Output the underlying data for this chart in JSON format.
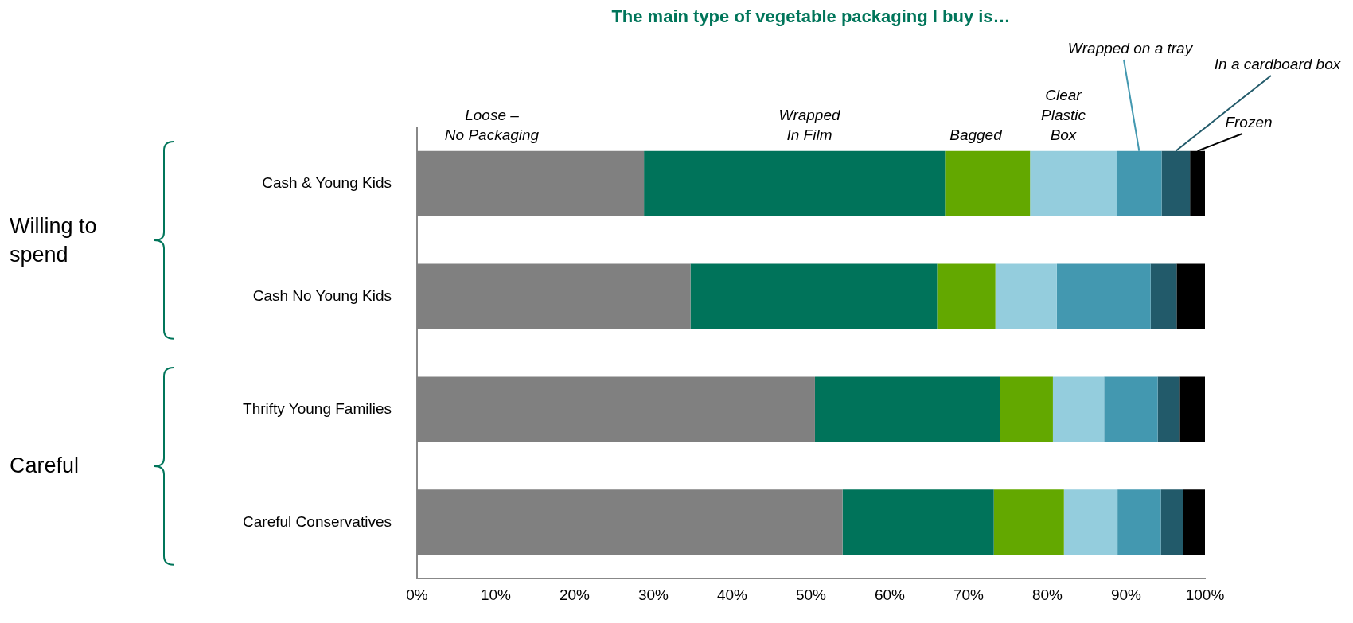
{
  "chart_data": {
    "type": "bar",
    "orientation": "horizontal",
    "stacked": true,
    "title": "The main type of vegetable packaging I buy is…",
    "categories": [
      "Cash & Young Kids",
      "Cash No Young Kids",
      "Thrifty Young Families",
      "Careful Conservatives"
    ],
    "series": [
      {
        "name": "Loose –\nNo Packaging",
        "color": "#808080",
        "values": [
          28.8,
          34.7,
          50.5,
          54.0
        ]
      },
      {
        "name": "Wrapped\nIn Film",
        "color": "#00735a",
        "values": [
          38.2,
          31.3,
          23.5,
          19.2
        ]
      },
      {
        "name": "Bagged",
        "color": "#63a800",
        "values": [
          10.8,
          7.4,
          6.7,
          8.9
        ]
      },
      {
        "name": "Clear\nPlastic\nBox",
        "color": "#94cddd",
        "values": [
          11.0,
          7.8,
          6.5,
          6.8
        ]
      },
      {
        "name": "Wrapped on a tray",
        "color": "#4398b0",
        "values": [
          5.7,
          11.9,
          6.8,
          5.5
        ]
      },
      {
        "name": "In a cardboard box",
        "color": "#225a6a",
        "values": [
          3.6,
          3.3,
          2.8,
          2.8
        ]
      },
      {
        "name": "Frozen",
        "color": "#000000",
        "values": [
          1.9,
          3.6,
          3.2,
          2.8
        ]
      }
    ],
    "xlim": [
      0,
      100
    ],
    "xticks": [
      {
        "value": 0,
        "label": "0%"
      },
      {
        "value": 10,
        "label": "10%"
      },
      {
        "value": 20,
        "label": "20%"
      },
      {
        "value": 30,
        "label": "30%"
      },
      {
        "value": 40,
        "label": "40%"
      },
      {
        "value": 50,
        "label": "50%"
      },
      {
        "value": 60,
        "label": "60%"
      },
      {
        "value": 70,
        "label": "70%"
      },
      {
        "value": 80,
        "label": "80%"
      },
      {
        "value": 90,
        "label": "90%"
      },
      {
        "value": 100,
        "label": "100%"
      }
    ],
    "grid": false,
    "legend": false,
    "annotations": [
      "Willing to spend",
      "Careful"
    ]
  }
}
